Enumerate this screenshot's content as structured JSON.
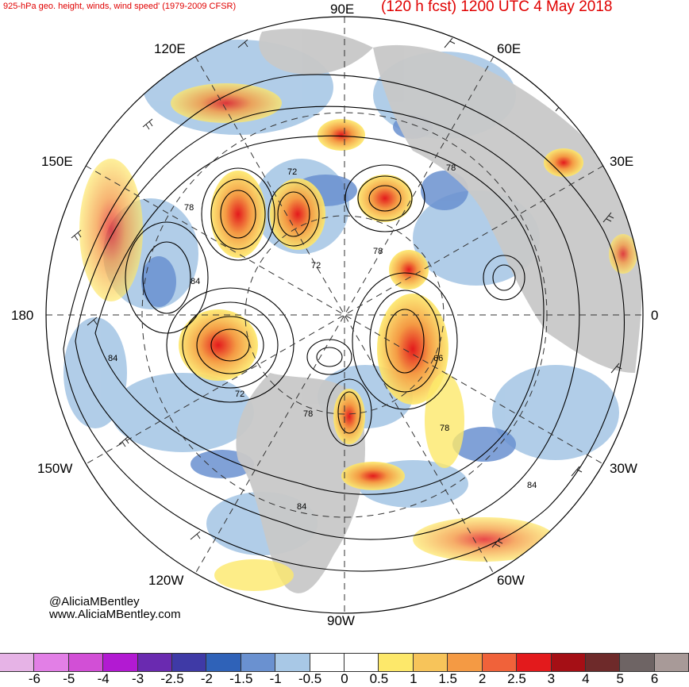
{
  "header": {
    "left_title": "925-hPa geo. height, winds, wind speed' (1979-2009 CFSR)",
    "right_title": "(120 h fcst) 1200 UTC 4 May 2018"
  },
  "map": {
    "projection": "north-polar-stereographic",
    "longitude_labels": {
      "e90": "90E",
      "e60": "60E",
      "e30": "30E",
      "zero": "0",
      "w30": "30W",
      "w60": "60W",
      "w90": "90W",
      "w120": "120W",
      "w150": "150W",
      "dateline": "180",
      "e150": "150E",
      "e120": "120E"
    },
    "contour_labels": [
      "72",
      "78",
      "84",
      "66",
      "78",
      "72",
      "78",
      "84",
      "84",
      "84",
      "78",
      "72",
      "78"
    ],
    "colors": {
      "land": "#c8c8c8",
      "contour": "#000000",
      "grid": "#333333"
    }
  },
  "credits": {
    "handle": "@AliciaMBentley",
    "website": "www.AliciaMBentley.com"
  },
  "colorbar": {
    "colors": [
      "#e6b3e6",
      "#e27fe6",
      "#d24fd6",
      "#b21ad2",
      "#6a2ab0",
      "#3f3aa6",
      "#2f62b8",
      "#6a91d0",
      "#a8c8e6",
      "#ffffff",
      "#ffffff",
      "#fde86a",
      "#f7c45a",
      "#f49a44",
      "#f0623a",
      "#e31a1c",
      "#a50f15",
      "#6e2a2a",
      "#6e6464",
      "#a89a98"
    ],
    "ticks": [
      "-6",
      "-5",
      "-4",
      "-3",
      "-2.5",
      "-2",
      "-1.5",
      "-1",
      "-0.5",
      "0",
      "0.5",
      "1",
      "1.5",
      "2",
      "2.5",
      "3",
      "4",
      "5",
      "6"
    ]
  }
}
